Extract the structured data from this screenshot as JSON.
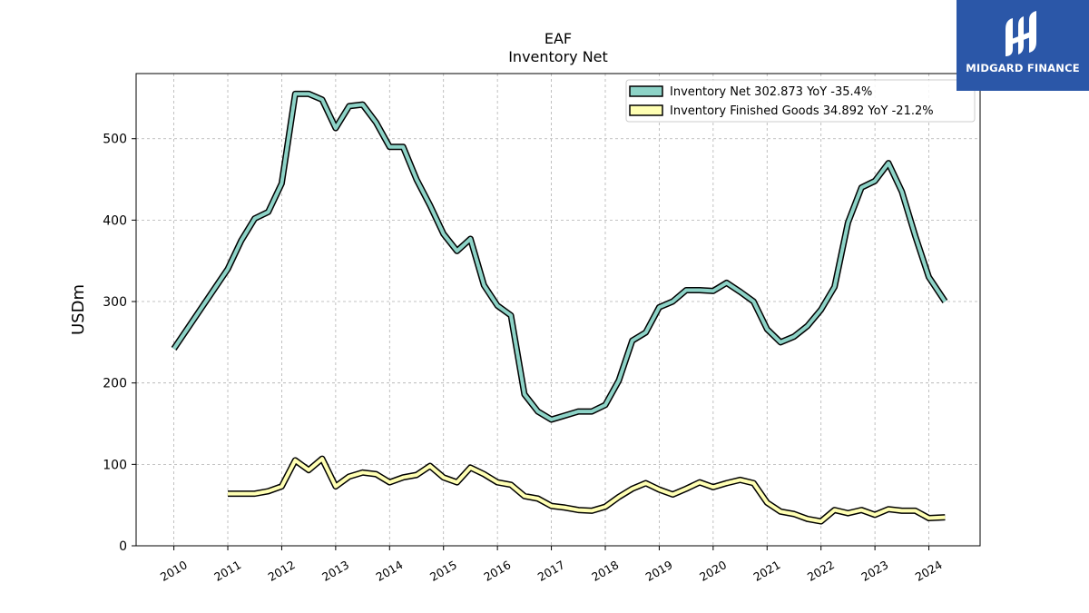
{
  "brand": {
    "name": "MIDGARD FINANCE",
    "color": "#2b57a8"
  },
  "chart_data": {
    "type": "line",
    "title": "EAF",
    "subtitle": "Inventory Net",
    "xlabel": "",
    "ylabel": "USDm",
    "xlim": [
      2009.3,
      2024.95
    ],
    "ylim": [
      0,
      580
    ],
    "x_ticks": [
      "2010",
      "2011",
      "2012",
      "2013",
      "2014",
      "2015",
      "2016",
      "2017",
      "2018",
      "2019",
      "2020",
      "2021",
      "2022",
      "2023",
      "2024"
    ],
    "y_ticks": [
      "0",
      "100",
      "200",
      "300",
      "400",
      "500"
    ],
    "grid": true,
    "legend_position": "top-right",
    "series": [
      {
        "name": "Inventory Net  302.873 YoY -35.4%",
        "color": "#8dd3c7",
        "points": [
          [
            2010.0,
            242
          ],
          [
            2011.0,
            340
          ],
          [
            2011.25,
            375
          ],
          [
            2011.5,
            402
          ],
          [
            2011.75,
            410
          ],
          [
            2012.0,
            445
          ],
          [
            2012.25,
            555
          ],
          [
            2012.5,
            555
          ],
          [
            2012.75,
            548
          ],
          [
            2013.0,
            513
          ],
          [
            2013.25,
            540
          ],
          [
            2013.5,
            542
          ],
          [
            2013.75,
            520
          ],
          [
            2014.0,
            490
          ],
          [
            2014.25,
            490
          ],
          [
            2014.5,
            450
          ],
          [
            2014.75,
            418
          ],
          [
            2015.0,
            383
          ],
          [
            2015.25,
            362
          ],
          [
            2015.5,
            377
          ],
          [
            2015.75,
            320
          ],
          [
            2016.0,
            295
          ],
          [
            2016.25,
            283
          ],
          [
            2016.5,
            186
          ],
          [
            2016.75,
            165
          ],
          [
            2017.0,
            155
          ],
          [
            2017.25,
            160
          ],
          [
            2017.5,
            165
          ],
          [
            2017.75,
            165
          ],
          [
            2018.0,
            173
          ],
          [
            2018.25,
            203
          ],
          [
            2018.5,
            252
          ],
          [
            2018.75,
            262
          ],
          [
            2019.0,
            293
          ],
          [
            2019.25,
            300
          ],
          [
            2019.5,
            314
          ],
          [
            2019.75,
            314
          ],
          [
            2020.0,
            313
          ],
          [
            2020.25,
            323
          ],
          [
            2020.5,
            312
          ],
          [
            2020.75,
            300
          ],
          [
            2021.0,
            266
          ],
          [
            2021.25,
            250
          ],
          [
            2021.5,
            257
          ],
          [
            2021.75,
            270
          ],
          [
            2022.0,
            290
          ],
          [
            2022.25,
            318
          ],
          [
            2022.5,
            397
          ],
          [
            2022.75,
            440
          ],
          [
            2023.0,
            448
          ],
          [
            2023.25,
            470
          ],
          [
            2023.5,
            435
          ],
          [
            2023.75,
            380
          ],
          [
            2024.0,
            330
          ],
          [
            2024.3,
            300
          ]
        ]
      },
      {
        "name": "Inventory Finished Goods  34.892 YoY -21.2%",
        "color": "#ffffb3",
        "points": [
          [
            2011.0,
            64
          ],
          [
            2011.25,
            64
          ],
          [
            2011.5,
            64
          ],
          [
            2011.75,
            67
          ],
          [
            2012.0,
            73
          ],
          [
            2012.25,
            105
          ],
          [
            2012.5,
            93
          ],
          [
            2012.75,
            107
          ],
          [
            2013.0,
            73
          ],
          [
            2013.25,
            85
          ],
          [
            2013.5,
            90
          ],
          [
            2013.75,
            88
          ],
          [
            2014.0,
            78
          ],
          [
            2014.25,
            84
          ],
          [
            2014.5,
            87
          ],
          [
            2014.75,
            98
          ],
          [
            2015.0,
            84
          ],
          [
            2015.25,
            78
          ],
          [
            2015.5,
            96
          ],
          [
            2015.75,
            88
          ],
          [
            2016.0,
            78
          ],
          [
            2016.25,
            75
          ],
          [
            2016.5,
            61
          ],
          [
            2016.75,
            58
          ],
          [
            2017.0,
            49
          ],
          [
            2017.25,
            47
          ],
          [
            2017.5,
            44
          ],
          [
            2017.75,
            43
          ],
          [
            2018.0,
            48
          ],
          [
            2018.25,
            60
          ],
          [
            2018.5,
            70
          ],
          [
            2018.75,
            77
          ],
          [
            2019.0,
            69
          ],
          [
            2019.25,
            63
          ],
          [
            2019.5,
            70
          ],
          [
            2019.75,
            78
          ],
          [
            2020.0,
            72
          ],
          [
            2020.25,
            77
          ],
          [
            2020.5,
            81
          ],
          [
            2020.75,
            77
          ],
          [
            2021.0,
            53
          ],
          [
            2021.25,
            42
          ],
          [
            2021.5,
            39
          ],
          [
            2021.75,
            33
          ],
          [
            2022.0,
            30
          ],
          [
            2022.25,
            44
          ],
          [
            2022.5,
            40
          ],
          [
            2022.75,
            44
          ],
          [
            2023.0,
            38
          ],
          [
            2023.25,
            45
          ],
          [
            2023.5,
            43
          ],
          [
            2023.75,
            43
          ],
          [
            2024.0,
            34
          ],
          [
            2024.3,
            35
          ]
        ]
      }
    ]
  }
}
